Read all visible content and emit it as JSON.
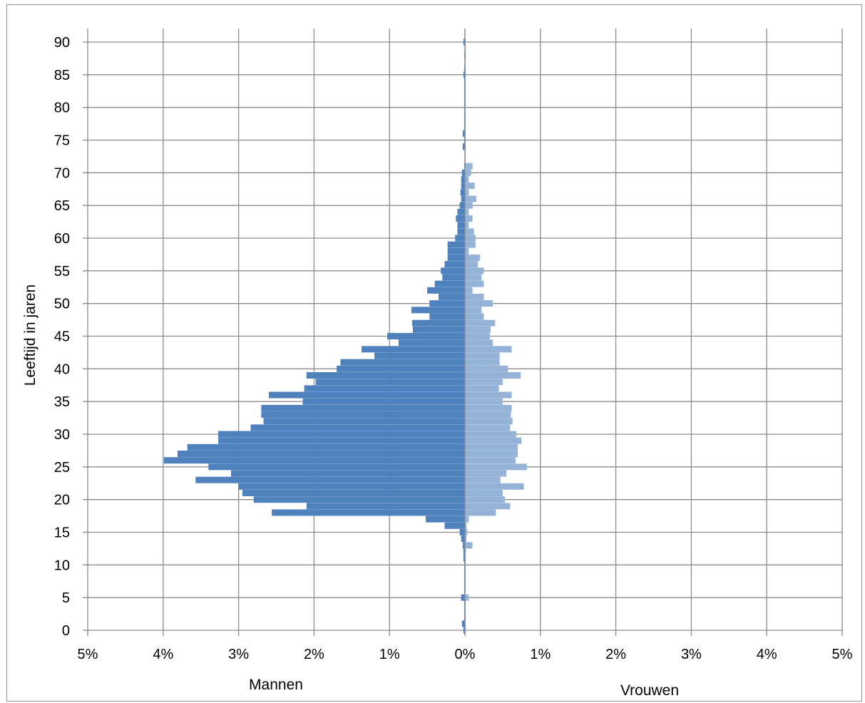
{
  "chart_data": {
    "type": "bar",
    "orientation": "horizontal",
    "subtype": "population-pyramid",
    "title": "",
    "ylabel": "Leeftijd in jaren",
    "xlabels": {
      "left": "Mannen",
      "right": "Vrouwen"
    },
    "x_unit": "%",
    "xlim": [
      -5,
      5
    ],
    "ylim": [
      0,
      90
    ],
    "x_ticks": [
      -5,
      -4,
      -3,
      -2,
      -1,
      0,
      1,
      2,
      3,
      4,
      5
    ],
    "x_tick_labels": [
      "5%",
      "4%",
      "3%",
      "2%",
      "1%",
      "0%",
      "1%",
      "2%",
      "3%",
      "4%",
      "5%"
    ],
    "y_ticks": [
      0,
      5,
      10,
      15,
      20,
      25,
      30,
      35,
      40,
      45,
      50,
      55,
      60,
      65,
      70,
      75,
      80,
      85,
      90
    ],
    "grid": true,
    "ages": [
      0,
      1,
      2,
      3,
      4,
      5,
      6,
      7,
      8,
      9,
      10,
      11,
      12,
      13,
      14,
      15,
      16,
      17,
      18,
      19,
      20,
      21,
      22,
      23,
      24,
      25,
      26,
      27,
      28,
      29,
      30,
      31,
      32,
      33,
      34,
      35,
      36,
      37,
      38,
      39,
      40,
      41,
      42,
      43,
      44,
      45,
      46,
      47,
      48,
      49,
      50,
      51,
      52,
      53,
      54,
      55,
      56,
      57,
      58,
      59,
      60,
      61,
      62,
      63,
      64,
      65,
      66,
      67,
      68,
      69,
      70,
      71,
      72,
      73,
      74,
      75,
      76,
      77,
      78,
      79,
      80,
      81,
      82,
      83,
      84,
      85,
      86,
      87,
      88,
      89,
      90
    ],
    "series": [
      {
        "name": "Mannen",
        "side": "left",
        "color": "#4f81bd",
        "values": [
          0.02,
          0.04,
          0.01,
          0.01,
          0.01,
          0.05,
          0.01,
          0.01,
          0.01,
          0.01,
          0.01,
          0.02,
          0.02,
          0.03,
          0.05,
          0.07,
          0.27,
          0.52,
          2.56,
          2.1,
          2.8,
          2.95,
          3.0,
          3.57,
          3.1,
          3.4,
          3.99,
          3.81,
          3.68,
          3.27,
          3.27,
          2.84,
          2.67,
          2.7,
          2.7,
          2.15,
          2.6,
          2.13,
          1.98,
          2.1,
          1.7,
          1.65,
          1.2,
          1.37,
          0.88,
          1.03,
          0.69,
          0.7,
          0.47,
          0.71,
          0.47,
          0.35,
          0.5,
          0.4,
          0.3,
          0.32,
          0.27,
          0.23,
          0.23,
          0.23,
          0.13,
          0.1,
          0.1,
          0.12,
          0.1,
          0.07,
          0.05,
          0.06,
          0.05,
          0.05,
          0.04,
          0.01,
          0.0,
          0.0,
          0.03,
          0.01,
          0.03,
          0.01,
          0.01,
          0.01,
          0.01,
          0.01,
          0.01,
          0.01,
          0.01,
          0.02,
          0.01,
          0.0,
          0.01,
          0.0,
          0.02
        ]
      },
      {
        "name": "Vrouwen",
        "side": "right",
        "color": "#95b3d7",
        "values": [
          0.01,
          0.01,
          0.01,
          0.01,
          0.01,
          0.05,
          0.01,
          0.01,
          0.01,
          0.01,
          0.01,
          0.01,
          0.01,
          0.1,
          0.02,
          0.03,
          0.02,
          0.05,
          0.41,
          0.6,
          0.53,
          0.5,
          0.78,
          0.47,
          0.55,
          0.82,
          0.67,
          0.7,
          0.7,
          0.75,
          0.68,
          0.6,
          0.63,
          0.61,
          0.62,
          0.5,
          0.62,
          0.45,
          0.5,
          0.74,
          0.57,
          0.46,
          0.46,
          0.62,
          0.37,
          0.33,
          0.34,
          0.4,
          0.25,
          0.22,
          0.37,
          0.25,
          0.1,
          0.25,
          0.22,
          0.25,
          0.17,
          0.2,
          0.05,
          0.14,
          0.14,
          0.12,
          0.05,
          0.1,
          0.05,
          0.1,
          0.15,
          0.05,
          0.13,
          0.05,
          0.08,
          0.1,
          0.01,
          0.01,
          0.01,
          0.01,
          0.01,
          0.01,
          0.01,
          0.01,
          0.01,
          0.01,
          0.01,
          0.01,
          0.01,
          0.01,
          0.01,
          0.01,
          0.01,
          0.01,
          0.01
        ]
      }
    ]
  }
}
